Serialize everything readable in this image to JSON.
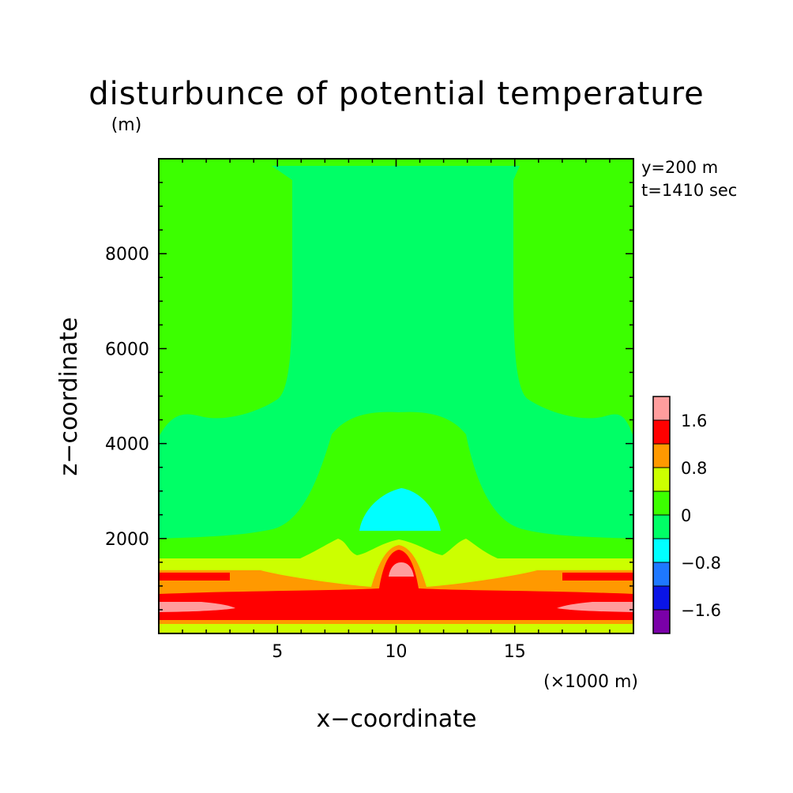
{
  "chart_data": {
    "type": "heatmap",
    "title": "disturbunce of potential temperature",
    "ylabel_unit": "(m)",
    "annotations": [
      "y=200 m",
      "t=1410 sec"
    ],
    "xlabel": "x−coordinate",
    "xlabel_unit": "(×1000 m)",
    "ylabel": "z−coordinate",
    "xlim": [
      0,
      20
    ],
    "ylim": [
      0,
      10000
    ],
    "xticks": [
      5,
      10,
      15
    ],
    "yticks": [
      2000,
      4000,
      6000,
      8000
    ],
    "contour_levels": [
      -2.0,
      -1.6,
      -1.2,
      -0.8,
      -0.4,
      0.0,
      0.4,
      0.8,
      1.2,
      1.6,
      2.0
    ],
    "level_colors": [
      "#7a00a8",
      "#0a14e6",
      "#1e78ff",
      "#00ffff",
      "#00ff66",
      "#3cff00",
      "#ccff00",
      "#ff9900",
      "#ff0000",
      "#ff9d9d"
    ],
    "colorbar_labels": [
      "1.6",
      "0.8",
      "0",
      "−0.8",
      "−1.6"
    ],
    "colorbar_label_values": [
      1.6,
      0.8,
      0.0,
      -0.8,
      -1.6
    ],
    "field_regions": [
      {
        "range": "0 to 0.4",
        "description": "background field, upper corners and lower layer up to ~4700 m in center"
      },
      {
        "range": "-0.4 to 0",
        "description": "central column above ~4700 m and sides from ~2000 m to ~4700 m"
      },
      {
        "range": "-1.2 to -0.4",
        "description": "cold bubble centered near x=10, z=2500"
      },
      {
        "range": "1.2 to 2.0",
        "description": "warm core near x=10, z=1300 and surface layer"
      }
    ]
  }
}
